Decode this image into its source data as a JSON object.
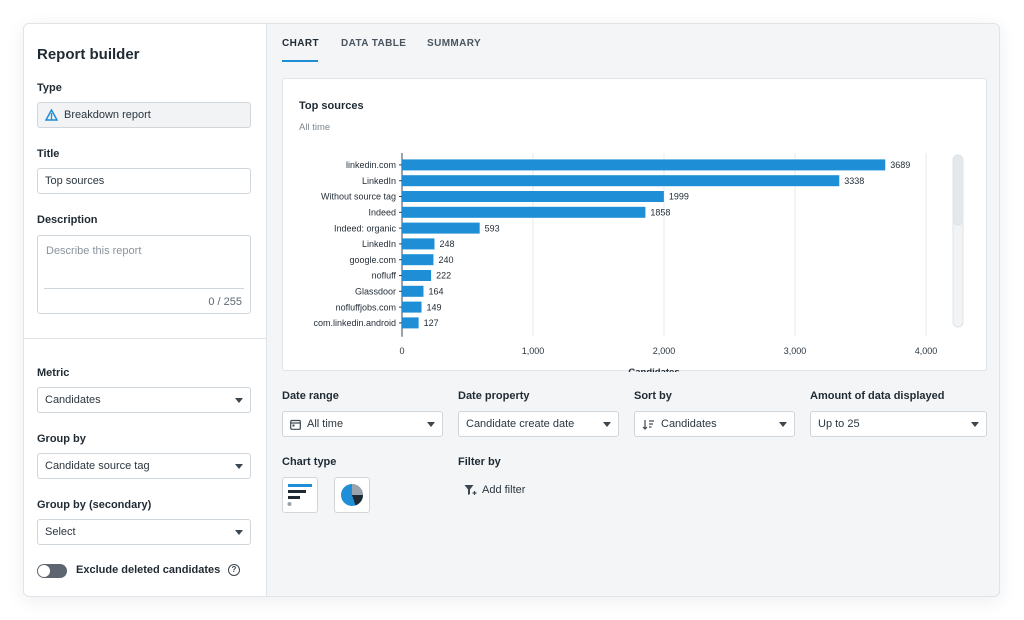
{
  "sidebar": {
    "title": "Report builder",
    "type_label": "Type",
    "type_value": "Breakdown report",
    "title_label": "Title",
    "title_value": "Top sources",
    "description_label": "Description",
    "description_placeholder": "Describe this report",
    "description_count": "0 / 255",
    "metric_label": "Metric",
    "metric_value": "Candidates",
    "group_by_label": "Group by",
    "group_by_value": "Candidate source tag",
    "group_by_secondary_label": "Group by (secondary)",
    "group_by_secondary_value": "Select",
    "exclude_label": "Exclude deleted candidates",
    "exclude_on": false
  },
  "tabs": [
    "CHART",
    "DATA TABLE",
    "SUMMARY"
  ],
  "active_tab": "CHART",
  "chart": {
    "title": "Top sources",
    "subtitle": "All time"
  },
  "chart_data": {
    "type": "bar",
    "orientation": "horizontal",
    "title": "Top sources",
    "subtitle": "All time",
    "xlabel": "Candidates",
    "ylabel": "",
    "categories": [
      "linkedin.com",
      "LinkedIn",
      "Without source tag",
      "Indeed",
      "Indeed: organic",
      "LinkedIn",
      "google.com",
      "nofluff",
      "Glassdoor",
      "nofluffjobs.com",
      "com.linkedin.android"
    ],
    "values": [
      3689,
      3338,
      1999,
      1858,
      593,
      248,
      240,
      222,
      164,
      149,
      127
    ],
    "xlim": [
      0,
      4000
    ],
    "xticks": [
      0,
      1000,
      2000,
      3000,
      4000
    ],
    "xtick_labels": [
      "0",
      "1,000",
      "2,000",
      "3,000",
      "4,000"
    ],
    "grid": true,
    "bar_color": "#1e8fd6"
  },
  "controls": {
    "date_range_label": "Date range",
    "date_range_value": "All time",
    "date_property_label": "Date property",
    "date_property_value": "Candidate create date",
    "sort_by_label": "Sort by",
    "sort_by_value": "Candidates",
    "amount_label": "Amount of data displayed",
    "amount_value": "Up to 25",
    "chart_type_label": "Chart type",
    "filter_by_label": "Filter by",
    "add_filter_label": "Add filter"
  },
  "colors": {
    "accent": "#1e8fd6",
    "text": "#1f2a33",
    "border": "#cfd6dc"
  }
}
